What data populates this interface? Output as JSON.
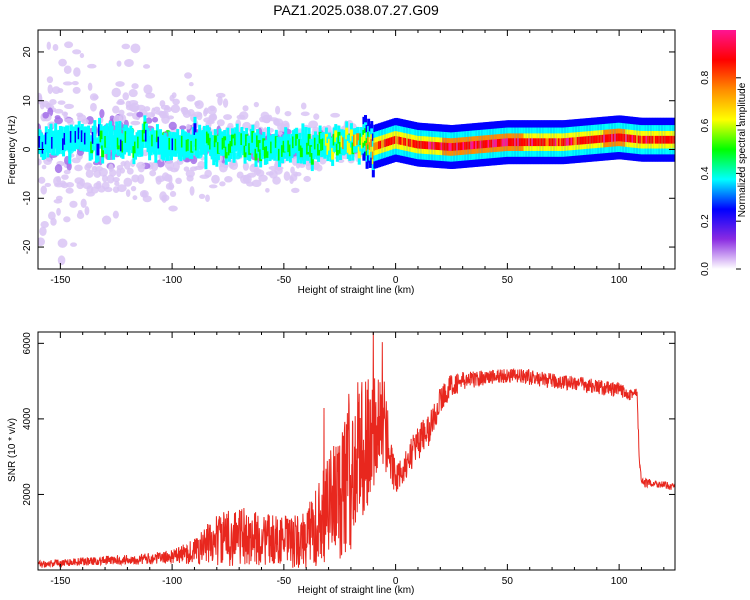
{
  "figure_title": "PAZ1.2025.038.07.27.G09",
  "chart_data": [
    {
      "type": "heatmap",
      "xlabel": "Height of straight line (km)",
      "ylabel": "Frequency (Hz)",
      "xlim": [
        -160,
        125
      ],
      "ylim": [
        -24.5,
        24.5
      ],
      "x_ticks": [
        -150,
        -100,
        -50,
        0,
        50,
        100
      ],
      "y_ticks": [
        20,
        10,
        0,
        -10,
        -20
      ],
      "colorbar": {
        "label": "Normalized spectral amplitude",
        "range": [
          0,
          1
        ],
        "ticks": [
          "0.0",
          "0.2",
          "0.4",
          "0.6",
          "0.8"
        ],
        "colors": [
          "#ffffff",
          "#8a2be2",
          "#0000ff",
          "#00ffff",
          "#00ff00",
          "#ffff00",
          "#ff8c00",
          "#ff0000",
          "#ff1493"
        ]
      },
      "ridge": {
        "x": [
          -160,
          -140,
          -120,
          -100,
          -80,
          -60,
          -40,
          -20,
          -10,
          0,
          10,
          25,
          50,
          75,
          100,
          110,
          125
        ],
        "freq_hz": [
          2,
          2,
          2,
          1.5,
          1,
          0.5,
          0.5,
          1.5,
          0.5,
          2,
          1,
          0.5,
          1.5,
          1.5,
          2.5,
          2,
          2
        ],
        "amplitude": [
          0.3,
          0.3,
          0.35,
          0.35,
          0.35,
          0.35,
          0.4,
          0.55,
          0.75,
          0.8,
          0.85,
          0.9,
          0.9,
          0.85,
          0.9,
          0.85,
          0.85
        ]
      },
      "spread_hz": {
        "x": [
          -160,
          -130,
          -100,
          -70,
          -50,
          -30,
          -15,
          0,
          125
        ],
        "sigma": [
          14,
          11,
          8,
          6,
          5,
          3.5,
          2,
          1.2,
          1
        ]
      }
    },
    {
      "type": "line",
      "xlabel": "Height of straight line (km)",
      "ylabel": "SNR (10 * v/v)",
      "xlim": [
        -160,
        125
      ],
      "ylim": [
        0,
        6300
      ],
      "x_ticks": [
        -150,
        -100,
        -50,
        0,
        50,
        100
      ],
      "y_ticks": [
        2000,
        4000,
        6000
      ],
      "series": [
        {
          "color": "#e8271e",
          "x": [
            -160,
            -150,
            -130,
            -110,
            -100,
            -90,
            -80,
            -70,
            -60,
            -50,
            -45,
            -40,
            -35,
            -30,
            -25,
            -20,
            -15,
            -10,
            -8,
            -5,
            0,
            5,
            10,
            15,
            20,
            25,
            30,
            40,
            50,
            60,
            70,
            80,
            90,
            100,
            108,
            109,
            110,
            115,
            120,
            125
          ],
          "y": [
            150,
            200,
            250,
            300,
            350,
            500,
            800,
            900,
            800,
            800,
            700,
            800,
            1200,
            1700,
            2000,
            2500,
            3200,
            3600,
            4000,
            3500,
            2400,
            2800,
            3400,
            3700,
            4500,
            4900,
            5000,
            5100,
            5150,
            5100,
            5000,
            4950,
            4850,
            4750,
            4650,
            3000,
            2300,
            2300,
            2250,
            2200
          ],
          "noise_amp": [
            100,
            100,
            120,
            150,
            180,
            350,
            700,
            800,
            700,
            650,
            750,
            800,
            1100,
            1500,
            1800,
            2000,
            2200,
            1500,
            1300,
            900,
            400,
            400,
            500,
            450,
            350,
            300,
            250,
            200,
            200,
            200,
            200,
            200,
            200,
            200,
            200,
            150,
            120,
            100,
            100,
            100
          ]
        }
      ]
    }
  ]
}
